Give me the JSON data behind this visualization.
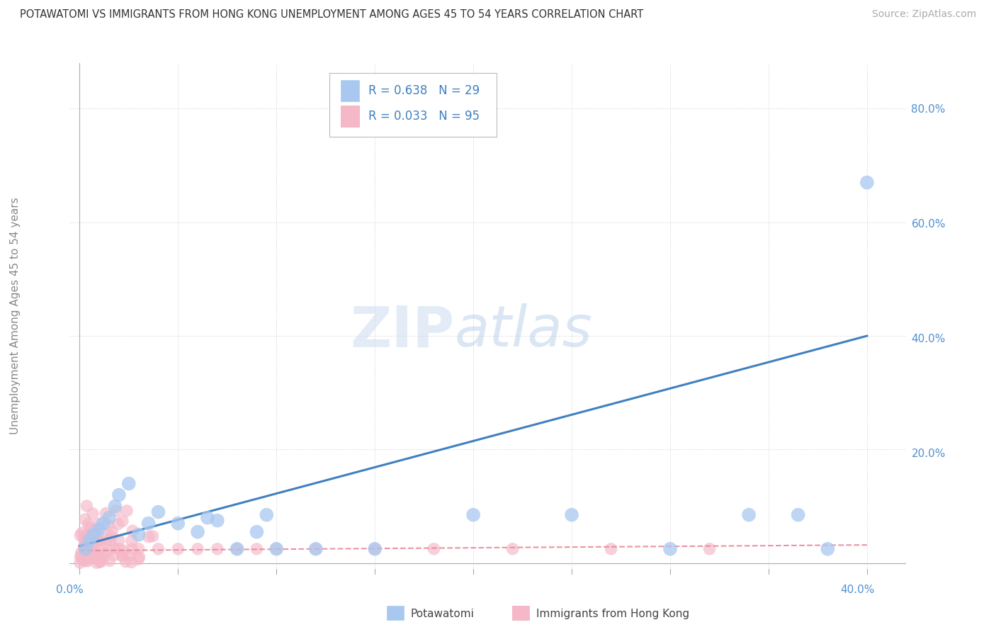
{
  "title": "POTAWATOMI VS IMMIGRANTS FROM HONG KONG UNEMPLOYMENT AMONG AGES 45 TO 54 YEARS CORRELATION CHART",
  "source": "Source: ZipAtlas.com",
  "ylabel": "Unemployment Among Ages 45 to 54 years",
  "xlim": [
    -0.005,
    0.42
  ],
  "ylim": [
    -0.01,
    0.88
  ],
  "ytick_positions": [
    0.0,
    0.2,
    0.4,
    0.6,
    0.8
  ],
  "yticklabels_right": [
    "",
    "20.0%",
    "40.0%",
    "60.0%",
    "80.0%"
  ],
  "grid_color": "#d0d0d0",
  "background_color": "#ffffff",
  "blue_color": "#a8c8f0",
  "pink_color": "#f5b8c8",
  "blue_line_color": "#4080c0",
  "pink_line_color": "#e88898",
  "axis_label_color": "#5090d0",
  "blue_R": 0.638,
  "blue_N": 29,
  "pink_R": 0.033,
  "pink_N": 95,
  "legend_label_blue": "Potawatomi",
  "legend_label_pink": "Immigrants from Hong Kong",
  "watermark_zip": "ZIP",
  "watermark_atlas": "atlas",
  "blue_trend_x": [
    0.0,
    0.4
  ],
  "blue_trend_y": [
    0.03,
    0.4
  ],
  "pink_trend_x": [
    0.0,
    0.4
  ],
  "pink_trend_y": [
    0.022,
    0.032
  ],
  "blue_points_x": [
    0.003,
    0.005,
    0.007,
    0.01,
    0.012,
    0.015,
    0.018,
    0.02,
    0.025,
    0.03,
    0.035,
    0.04,
    0.05,
    0.06,
    0.065,
    0.07,
    0.08,
    0.09,
    0.095,
    0.1,
    0.12,
    0.15,
    0.2,
    0.25,
    0.3,
    0.34,
    0.365,
    0.38,
    0.4
  ],
  "blue_points_y": [
    0.025,
    0.04,
    0.05,
    0.06,
    0.07,
    0.08,
    0.1,
    0.12,
    0.14,
    0.05,
    0.07,
    0.09,
    0.07,
    0.055,
    0.08,
    0.075,
    0.025,
    0.055,
    0.085,
    0.025,
    0.025,
    0.025,
    0.085,
    0.085,
    0.025,
    0.085,
    0.085,
    0.025,
    0.67
  ]
}
